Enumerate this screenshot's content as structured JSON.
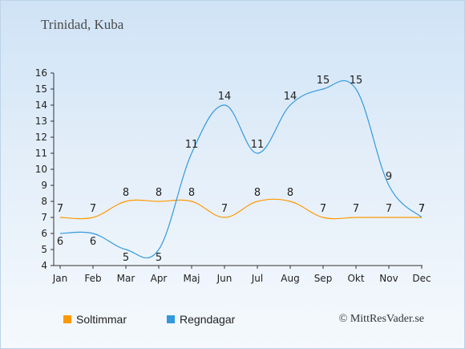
{
  "title": "Trinidad, Kuba",
  "copyright": "© MittResVader.se",
  "legend": {
    "sun_label": "Soltimmar",
    "rain_label": "Regndagar"
  },
  "colors": {
    "sun": "#ff9900",
    "rain": "#3399dd"
  },
  "chart_data": {
    "type": "line",
    "categories": [
      "Jan",
      "Feb",
      "Mar",
      "Apr",
      "Maj",
      "Jun",
      "Jul",
      "Aug",
      "Sep",
      "Okt",
      "Nov",
      "Dec"
    ],
    "series": [
      {
        "name": "Soltimmar",
        "values": [
          7,
          7,
          8,
          8,
          8,
          7,
          8,
          8,
          7,
          7,
          7,
          7
        ]
      },
      {
        "name": "Regndagar",
        "values": [
          6,
          6,
          5,
          5,
          11,
          14,
          11,
          14,
          15,
          15,
          9,
          7
        ]
      }
    ],
    "ylim": [
      4,
      16
    ],
    "yticks": [
      4,
      5,
      6,
      7,
      8,
      9,
      10,
      11,
      12,
      13,
      14,
      15,
      16
    ],
    "grid": false,
    "legend_position": "bottom"
  }
}
